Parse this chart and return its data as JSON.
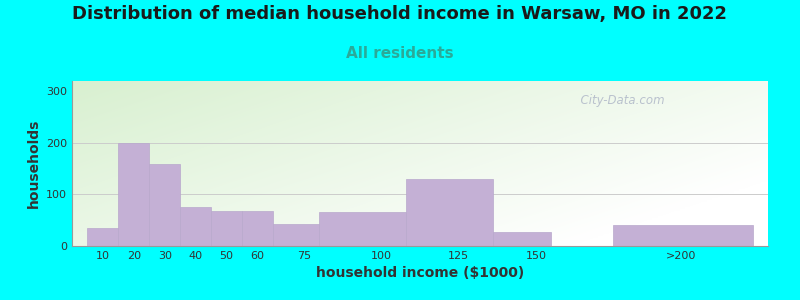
{
  "title": "Distribution of median household income in Warsaw, MO in 2022",
  "subtitle": "All residents",
  "xlabel": "household income ($1000)",
  "ylabel": "households",
  "background_color": "#00FFFF",
  "bar_color": "#C4B0D5",
  "bar_edge_color": "#B8A8CC",
  "categories": [
    "10",
    "20",
    "30",
    "40",
    "50",
    "60",
    "75",
    "100",
    "125",
    "150",
    ">200"
  ],
  "bar_left_edges": [
    5,
    15,
    25,
    35,
    45,
    55,
    65,
    80,
    108,
    136,
    175
  ],
  "bar_right_edges": [
    15,
    25,
    35,
    45,
    55,
    65,
    80,
    108,
    136,
    155,
    220
  ],
  "bar_heights": [
    35,
    200,
    160,
    75,
    68,
    68,
    42,
    65,
    130,
    28,
    40
  ],
  "xtick_positions": [
    10,
    20,
    30,
    40,
    50,
    60,
    75,
    100,
    125,
    150,
    197
  ],
  "yticks": [
    0,
    100,
    200,
    300
  ],
  "ylim": [
    0,
    320
  ],
  "xlim": [
    0,
    225
  ],
  "title_fontsize": 13,
  "subtitle_fontsize": 11,
  "axis_label_fontsize": 10,
  "tick_fontsize": 8,
  "watermark": "  City-Data.com"
}
